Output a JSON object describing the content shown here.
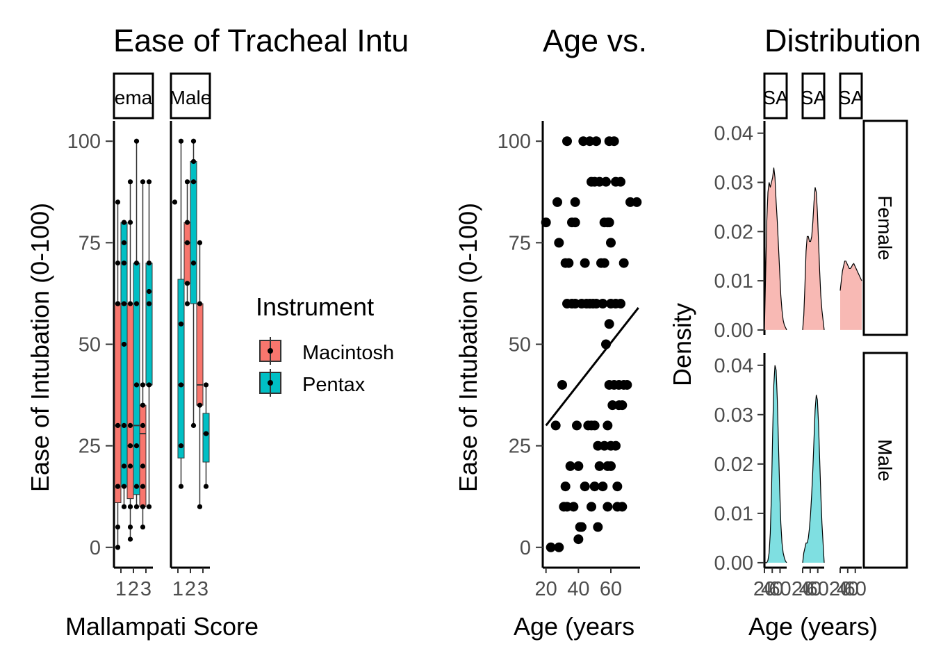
{
  "chart_data": [
    {
      "type": "box",
      "title": "Ease of Tracheal Intu",
      "xlabel": "Mallampati Score",
      "ylabel": "Ease of Intubation (0-100)",
      "ylim": [
        -5,
        105
      ],
      "yticks": [
        0,
        25,
        50,
        75,
        100
      ],
      "categories": [
        "1",
        "2",
        "3"
      ],
      "facets": [
        "ema",
        "Male"
      ],
      "legend": {
        "title": "Instrument",
        "position": "right",
        "items": [
          {
            "label": "Macintosh",
            "color": "#F8766D"
          },
          {
            "label": "Pentax",
            "color": "#00BFC4"
          }
        ]
      },
      "boxes": [
        {
          "facet": "ema",
          "score": 1,
          "instrument": "Macintosh",
          "q1": 11,
          "median": 30,
          "q3": 60,
          "low": 0,
          "high": 85
        },
        {
          "facet": "ema",
          "score": 1,
          "instrument": "Pentax",
          "q1": 15,
          "median": 60,
          "q3": 80,
          "low": 10,
          "high": 80
        },
        {
          "facet": "ema",
          "score": 2,
          "instrument": "Macintosh",
          "q1": 12,
          "median": 25,
          "q3": 60,
          "low": 2,
          "high": 90
        },
        {
          "facet": "ema",
          "score": 2,
          "instrument": "Pentax",
          "q1": 13,
          "median": 30,
          "q3": 70,
          "low": 10,
          "high": 100
        },
        {
          "facet": "ema",
          "score": 3,
          "instrument": "Macintosh",
          "q1": 10,
          "median": 28,
          "q3": 35,
          "low": 5,
          "high": 90
        },
        {
          "facet": "ema",
          "score": 3,
          "instrument": "Pentax",
          "q1": 40,
          "median": 40,
          "q3": 70,
          "low": 10,
          "high": 90
        },
        {
          "facet": "Male",
          "score": 1,
          "instrument": "Pentax",
          "q1": 22,
          "median": 40,
          "q3": 66,
          "low": 15,
          "high": 100
        },
        {
          "facet": "Male",
          "score": 2,
          "instrument": "Macintosh",
          "q1": 65,
          "median": 75,
          "q3": 80,
          "low": 60,
          "high": 90
        },
        {
          "facet": "Male",
          "score": 2,
          "instrument": "Pentax",
          "q1": 60,
          "median": 90,
          "q3": 95,
          "low": 30,
          "high": 100
        },
        {
          "facet": "Male",
          "score": 3,
          "instrument": "Macintosh",
          "q1": 35,
          "median": 40,
          "q3": 60,
          "low": 10,
          "high": 75
        },
        {
          "facet": "Male",
          "score": 3,
          "instrument": "Pentax",
          "q1": 21,
          "median": 28,
          "q3": 33,
          "low": 15,
          "high": 40
        }
      ],
      "points": [
        {
          "facet": "ema",
          "score": 1,
          "instrument": "Macintosh",
          "values": [
            0,
            0,
            5,
            15,
            15,
            30,
            60,
            60,
            70,
            85
          ]
        },
        {
          "facet": "ema",
          "score": 1,
          "instrument": "Pentax",
          "values": [
            10,
            15,
            20,
            30,
            50,
            60,
            70,
            75,
            80,
            80
          ]
        },
        {
          "facet": "ema",
          "score": 2,
          "instrument": "Macintosh",
          "values": [
            2,
            5,
            10,
            20,
            25,
            30,
            60,
            80,
            90
          ]
        },
        {
          "facet": "ema",
          "score": 2,
          "instrument": "Pentax",
          "values": [
            10,
            15,
            25,
            40,
            60,
            70,
            100
          ]
        },
        {
          "facet": "ema",
          "score": 3,
          "instrument": "Macintosh",
          "values": [
            5,
            10,
            15,
            20,
            30,
            35,
            40,
            90
          ]
        },
        {
          "facet": "ema",
          "score": 3,
          "instrument": "Pentax",
          "values": [
            10,
            40,
            60,
            63,
            70,
            90
          ]
        },
        {
          "facet": "Male",
          "score": 1,
          "instrument": "Macintosh",
          "values": [
            85
          ]
        },
        {
          "facet": "Male",
          "score": 1,
          "instrument": "Pentax",
          "values": [
            15,
            25,
            40,
            55,
            100
          ]
        },
        {
          "facet": "Male",
          "score": 2,
          "instrument": "Macintosh",
          "values": [
            60,
            65,
            75,
            80,
            90
          ]
        },
        {
          "facet": "Male",
          "score": 2,
          "instrument": "Pentax",
          "values": [
            30,
            70,
            90,
            95,
            100
          ]
        },
        {
          "facet": "Male",
          "score": 3,
          "instrument": "Macintosh",
          "values": [
            10,
            35,
            60,
            75
          ]
        },
        {
          "facet": "Male",
          "score": 3,
          "instrument": "Pentax",
          "values": [
            15,
            28,
            40
          ]
        }
      ]
    },
    {
      "type": "scatter",
      "title": "Age vs.",
      "xlabel": "Age (years",
      "ylabel": "Ease of Intubation (0-100)",
      "xlim": [
        18,
        78
      ],
      "ylim": [
        -5,
        105
      ],
      "xticks": [
        20,
        40,
        60
      ],
      "yticks": [
        0,
        25,
        50,
        75,
        100
      ],
      "trend": {
        "x": [
          20,
          77
        ],
        "y": [
          30,
          59
        ]
      },
      "points": [
        [
          20,
          80
        ],
        [
          23,
          0
        ],
        [
          26,
          30
        ],
        [
          27,
          85
        ],
        [
          28,
          0
        ],
        [
          28,
          75
        ],
        [
          30,
          40
        ],
        [
          31,
          10
        ],
        [
          32,
          70
        ],
        [
          32,
          15
        ],
        [
          33,
          100
        ],
        [
          33,
          60
        ],
        [
          33,
          10
        ],
        [
          34,
          70
        ],
        [
          35,
          20
        ],
        [
          36,
          80
        ],
        [
          36,
          60
        ],
        [
          37,
          10
        ],
        [
          38,
          85
        ],
        [
          38,
          80
        ],
        [
          38,
          60
        ],
        [
          39,
          30
        ],
        [
          40,
          20
        ],
        [
          40,
          2
        ],
        [
          41,
          5
        ],
        [
          42,
          60
        ],
        [
          42,
          5
        ],
        [
          43,
          100
        ],
        [
          44,
          70
        ],
        [
          44,
          15
        ],
        [
          45,
          60
        ],
        [
          46,
          30
        ],
        [
          47,
          100
        ],
        [
          47,
          60
        ],
        [
          48,
          90
        ],
        [
          48,
          30
        ],
        [
          48,
          10
        ],
        [
          49,
          60
        ],
        [
          50,
          90
        ],
        [
          50,
          30
        ],
        [
          50,
          15
        ],
        [
          51,
          100
        ],
        [
          51,
          60
        ],
        [
          52,
          5
        ],
        [
          52,
          25
        ],
        [
          53,
          90
        ],
        [
          53,
          20
        ],
        [
          54,
          70
        ],
        [
          55,
          60
        ],
        [
          55,
          15
        ],
        [
          56,
          25
        ],
        [
          56,
          80
        ],
        [
          56,
          70
        ],
        [
          57,
          50
        ],
        [
          57,
          90
        ],
        [
          58,
          80
        ],
        [
          58,
          30
        ],
        [
          58,
          20
        ],
        [
          58,
          10
        ],
        [
          59,
          55
        ],
        [
          59,
          40
        ],
        [
          59,
          80
        ],
        [
          59,
          100
        ],
        [
          60,
          75
        ],
        [
          60,
          60
        ],
        [
          60,
          20
        ],
        [
          60,
          25
        ],
        [
          61,
          35
        ],
        [
          62,
          100
        ],
        [
          62,
          40
        ],
        [
          63,
          90
        ],
        [
          63,
          25
        ],
        [
          63,
          60
        ],
        [
          64,
          15
        ],
        [
          64,
          10
        ],
        [
          65,
          35
        ],
        [
          65,
          40
        ],
        [
          66,
          60
        ],
        [
          66,
          90
        ],
        [
          67,
          10
        ],
        [
          67,
          35
        ],
        [
          68,
          70
        ],
        [
          68,
          40
        ],
        [
          70,
          40
        ],
        [
          72,
          85
        ],
        [
          76,
          85
        ]
      ]
    },
    {
      "type": "area",
      "title": "Distribution",
      "xlabel": "Age (years)",
      "ylabel": "Density",
      "ylim": [
        -0.001,
        0.0425
      ],
      "yticks": [
        "0.00",
        "0.01",
        "0.02",
        "0.03",
        "0.04"
      ],
      "column_strips": [
        "SA",
        "SA",
        "SA"
      ],
      "row_strips": [
        "Female",
        "Male"
      ],
      "x_tick_labels": [
        "20",
        "40",
        "60"
      ],
      "colors": {
        "Female": "#F8766D",
        "Male": "#00BFC4"
      },
      "series": [
        {
          "strip": "Female",
          "column": 1,
          "x": [
            20,
            23,
            26,
            29,
            32,
            35,
            38,
            41,
            44,
            47,
            50,
            53,
            56,
            59,
            62,
            65,
            68,
            71,
            74,
            77
          ],
          "values": [
            0,
            0.011,
            0.022,
            0.028,
            0.03,
            0.029,
            0.03,
            0.031,
            0.033,
            0.031,
            0.026,
            0.022,
            0.017,
            0.012,
            0.007,
            0.004,
            0.002,
            0.001,
            0.0005,
            0
          ]
        },
        {
          "strip": "Female",
          "column": 2,
          "x": [
            20,
            23,
            26,
            29,
            32,
            35,
            38,
            41,
            44,
            47,
            50,
            53,
            56,
            59,
            62,
            65,
            68,
            71,
            74,
            77
          ],
          "values": [
            0,
            0.003,
            0.009,
            0.016,
            0.019,
            0.019,
            0.018,
            0.018,
            0.019,
            0.022,
            0.026,
            0.029,
            0.028,
            0.024,
            0.018,
            0.012,
            0.007,
            0.004,
            0.002,
            0
          ]
        },
        {
          "strip": "Female",
          "column": 3,
          "x": [
            20,
            23,
            26,
            29,
            32,
            35,
            38,
            41,
            44,
            47,
            50,
            53,
            56,
            59,
            62,
            65,
            68,
            71,
            74,
            77
          ],
          "values": [
            0.008,
            0.01,
            0.012,
            0.013,
            0.014,
            0.014,
            0.0135,
            0.013,
            0.0125,
            0.0125,
            0.0128,
            0.0133,
            0.0135,
            0.013,
            0.0125,
            0.012,
            0.0115,
            0.011,
            0.0105,
            0.01
          ]
        },
        {
          "strip": "Male",
          "column": 1,
          "x": [
            20,
            23,
            26,
            29,
            32,
            35,
            38,
            41,
            44,
            47,
            50,
            53,
            56,
            59,
            62,
            65,
            68,
            71,
            74,
            77
          ],
          "values": [
            0,
            0,
            0,
            0.0005,
            0.002,
            0.006,
            0.014,
            0.026,
            0.036,
            0.04,
            0.039,
            0.033,
            0.024,
            0.015,
            0.008,
            0.004,
            0.002,
            0.001,
            0.0003,
            0
          ]
        },
        {
          "strip": "Male",
          "column": 2,
          "x": [
            20,
            23,
            26,
            29,
            32,
            35,
            38,
            41,
            44,
            47,
            50,
            53,
            56,
            59,
            62,
            65,
            68,
            71,
            74,
            77
          ],
          "values": [
            0,
            0.002,
            0.003,
            0.004,
            0.004,
            0.005,
            0.007,
            0.01,
            0.014,
            0.019,
            0.025,
            0.031,
            0.034,
            0.033,
            0.028,
            0.021,
            0.014,
            0.008,
            0.004,
            0
          ]
        }
      ]
    }
  ]
}
